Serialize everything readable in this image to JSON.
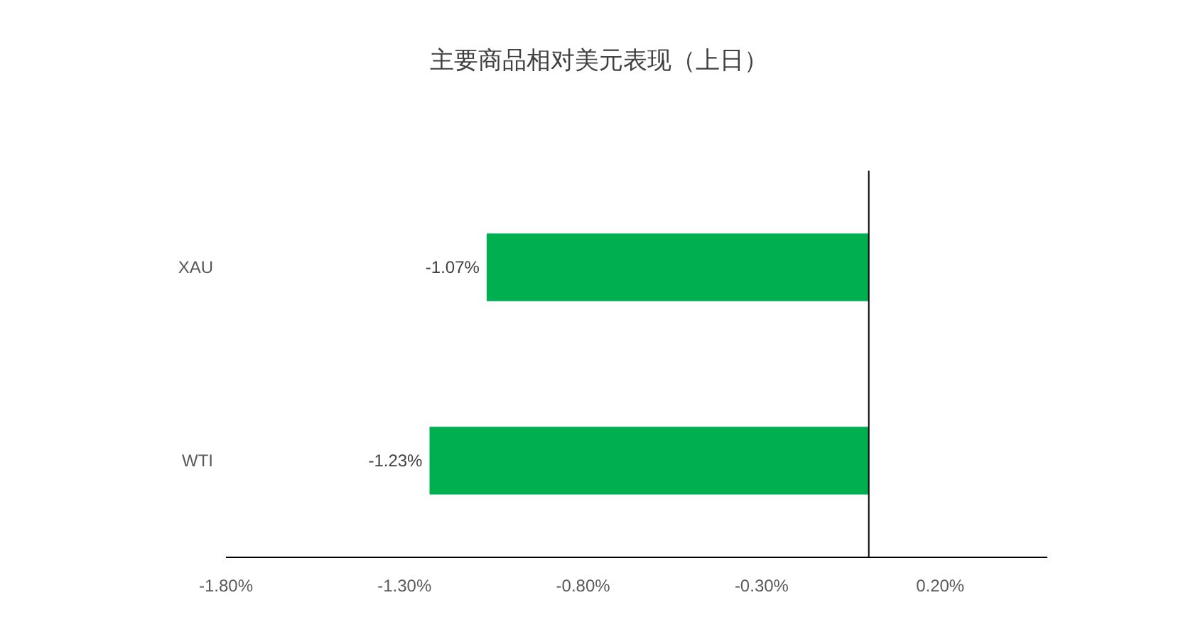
{
  "chart_data": {
    "type": "bar",
    "orientation": "horizontal",
    "title": "主要商品相对美元表现（上日）",
    "categories": [
      "XAU",
      "WTI"
    ],
    "values": [
      -1.07,
      -1.23
    ],
    "value_labels": [
      "-1.07%",
      "-1.23%"
    ],
    "color": "#00b050",
    "xlim": [
      -1.8,
      0.5
    ],
    "xticks": [
      {
        "value": -1.8,
        "label": "-1.80%"
      },
      {
        "value": -1.3,
        "label": "-1.30%"
      },
      {
        "value": -0.8,
        "label": "-0.80%"
      },
      {
        "value": -0.3,
        "label": "-0.30%"
      },
      {
        "value": 0.2,
        "label": "0.20%"
      }
    ],
    "ref_lines": [
      {
        "axis": "x",
        "value": 0,
        "color": "#000000"
      }
    ],
    "grid": false
  }
}
